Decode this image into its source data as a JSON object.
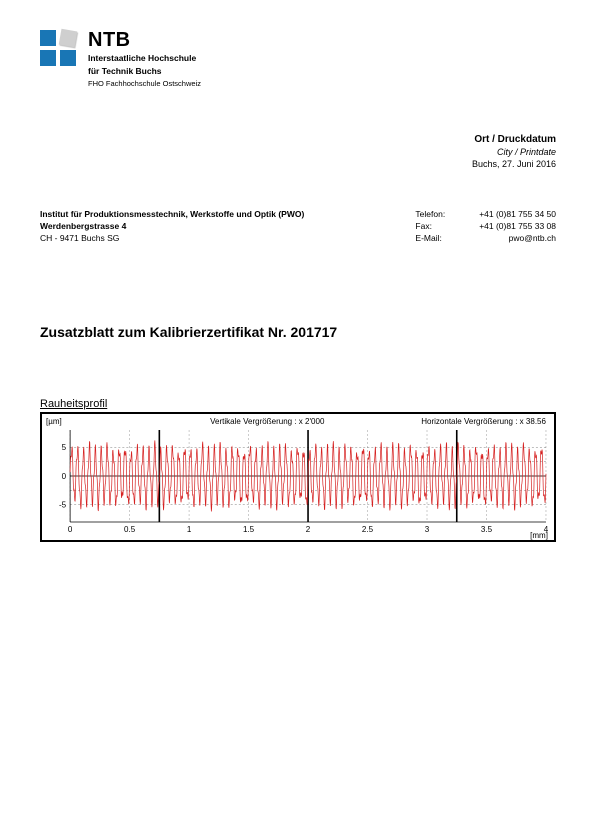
{
  "logo": {
    "title": "NTB",
    "sub1a": "Interstaatliche Hochschule",
    "sub1b": "für Technik Buchs",
    "sub2": "FHO Fachhochschule Ostschweiz"
  },
  "date_block": {
    "heading": "Ort / Druckdatum",
    "italic": "City / Printdate",
    "value": "Buchs, 27. Juni 2016"
  },
  "institute": {
    "line1": "Institut für Produktionsmesstechnik, Werkstoffe und Optik (PWO)",
    "line2": "Werdenbergstrasse 4",
    "line3": "CH - 9471 Buchs SG"
  },
  "contact": {
    "tel_label": "Telefon:",
    "tel_value": "+41 (0)81 755 34 50",
    "fax_label": "Fax:",
    "fax_value": "+41 (0)81 755 33 08",
    "email_label": "E-Mail:",
    "email_value": "pwo@ntb.ch"
  },
  "main_title": "Zusatzblatt zum Kalibrierzertifikat Nr. 201717",
  "chart": {
    "title": "Rauheitsprofil",
    "y_unit": "[µm]",
    "x_unit": "[mm]",
    "mag_v_label": "Vertikale Vergrößerung : x 2'000",
    "mag_h_label": "Horizontale Vergrößerung : x 38.56",
    "y_ticks": [
      "5",
      "0",
      "-5"
    ],
    "x_ticks": [
      "0",
      "0.5",
      "1",
      "1.5",
      "2",
      "2.5",
      "3",
      "3.5",
      "4"
    ],
    "x_min": 0,
    "x_max": 4,
    "y_min": -8,
    "y_max": 8,
    "major_vlines": [
      0.75,
      2.0,
      3.25
    ],
    "profile_color": "#d62020",
    "axis_color": "#000000",
    "grid_dash": "2,2",
    "text_color": "#000000",
    "profile_amplitude": 4.5,
    "profile_minor_amp": 1.2,
    "profile_period_mm": 0.05,
    "background": "#ffffff"
  }
}
